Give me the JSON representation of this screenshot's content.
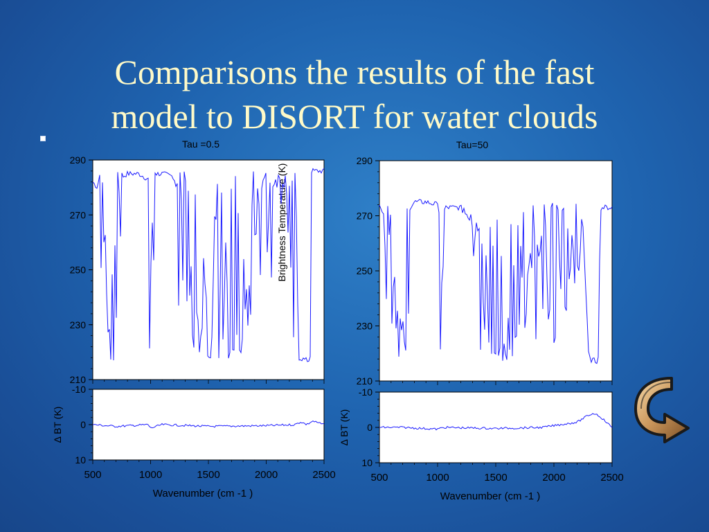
{
  "slide": {
    "title_line1": "Comparisons the results of the fast",
    "title_line2": "model to DISORT for water clouds"
  },
  "nav": {
    "back_icon": "curved-return-arrow-icon"
  },
  "colors": {
    "background": "#1f64b0",
    "title": "#fffac8",
    "trace": "#1a1aff",
    "plot_bg": "#ffffff"
  },
  "chart_data": [
    {
      "type": "line",
      "title": "Tau =0.5",
      "ylabel": "Brightness Temperature (K)",
      "xlabel": "",
      "xlim": [
        500,
        2500
      ],
      "ylim": [
        210,
        290
      ],
      "yticks": [
        "290",
        "270",
        "250",
        "230",
        "210"
      ],
      "series": [
        {
          "x": [
            500,
            540,
            600,
            650,
            680,
            700,
            730,
            760,
            800,
            900,
            980,
            1000,
            1030,
            1060,
            1100,
            1200,
            1250,
            1300,
            1350,
            1400,
            1450,
            1500,
            1560,
            1620,
            1700,
            1760,
            1800,
            1850,
            1900,
            1950,
            2000,
            2050,
            2100,
            2150,
            2200,
            2230,
            2260,
            2280,
            2350,
            2380,
            2390,
            2420,
            2500
          ],
          "y": [
            282,
            280,
            262,
            220,
            217,
            232,
            280,
            284,
            285,
            285,
            283,
            220,
            285,
            285,
            285,
            284,
            275,
            258,
            245,
            232,
            225,
            218,
            218,
            220,
            222,
            235,
            250,
            262,
            270,
            275,
            278,
            279,
            280,
            280,
            279,
            276,
            270,
            218,
            217,
            217,
            286,
            286,
            286
          ]
        }
      ]
    },
    {
      "type": "line",
      "title": "",
      "ylabel": "Δ BT (K)",
      "xlabel": "Wavenumber (cm -1 )",
      "xlim": [
        500,
        2500
      ],
      "ylim": [
        -10,
        10
      ],
      "yticks": [
        "-10",
        "0",
        "10"
      ],
      "xticks": [
        "500",
        "1000",
        "1500",
        "2000",
        "2500"
      ],
      "series": [
        {
          "x": [
            500,
            700,
            980,
            1000,
            1050,
            1100,
            1500,
            2000,
            2250,
            2300,
            2350,
            2400,
            2500
          ],
          "y": [
            0,
            0.5,
            0,
            1,
            0.5,
            0,
            0.5,
            0.3,
            0,
            -0.8,
            0,
            -1,
            0
          ]
        }
      ]
    },
    {
      "type": "line",
      "title": "Tau=50",
      "ylabel": "",
      "xlabel": "",
      "xlim": [
        500,
        2500
      ],
      "ylim": [
        210,
        290
      ],
      "yticks": [
        "290",
        "270",
        "250",
        "230",
        "210"
      ],
      "series": [
        {
          "x": [
            500,
            560,
            600,
            650,
            680,
            720,
            760,
            800,
            900,
            1000,
            1030,
            1060,
            1100,
            1200,
            1300,
            1400,
            1500,
            1560,
            1620,
            1700,
            1800,
            1900,
            2000,
            2100,
            2200,
            2250,
            2300,
            2380,
            2400,
            2500
          ],
          "y": [
            273,
            270,
            255,
            225,
            218,
            240,
            273,
            275,
            275,
            274,
            220,
            273,
            273,
            273,
            265,
            240,
            225,
            220,
            222,
            230,
            250,
            262,
            270,
            272,
            272,
            266,
            218,
            217,
            273,
            273
          ]
        }
      ]
    },
    {
      "type": "line",
      "title": "",
      "ylabel": "Δ BT (K)",
      "xlabel": "Wavenumber (cm -1 )",
      "xlim": [
        500,
        2500
      ],
      "ylim": [
        -10,
        10
      ],
      "yticks": [
        "-10",
        "0",
        "10"
      ],
      "xticks": [
        "500",
        "1000",
        "1500",
        "2000",
        "2500"
      ],
      "series": [
        {
          "x": [
            500,
            700,
            1000,
            1050,
            1500,
            1900,
            2000,
            2100,
            2200,
            2250,
            2300,
            2350,
            2400,
            2500
          ],
          "y": [
            0,
            0,
            0.5,
            0,
            0.3,
            0,
            -0.5,
            -1,
            -1.5,
            -2.5,
            -3.5,
            -4,
            -3,
            0
          ]
        }
      ]
    }
  ]
}
